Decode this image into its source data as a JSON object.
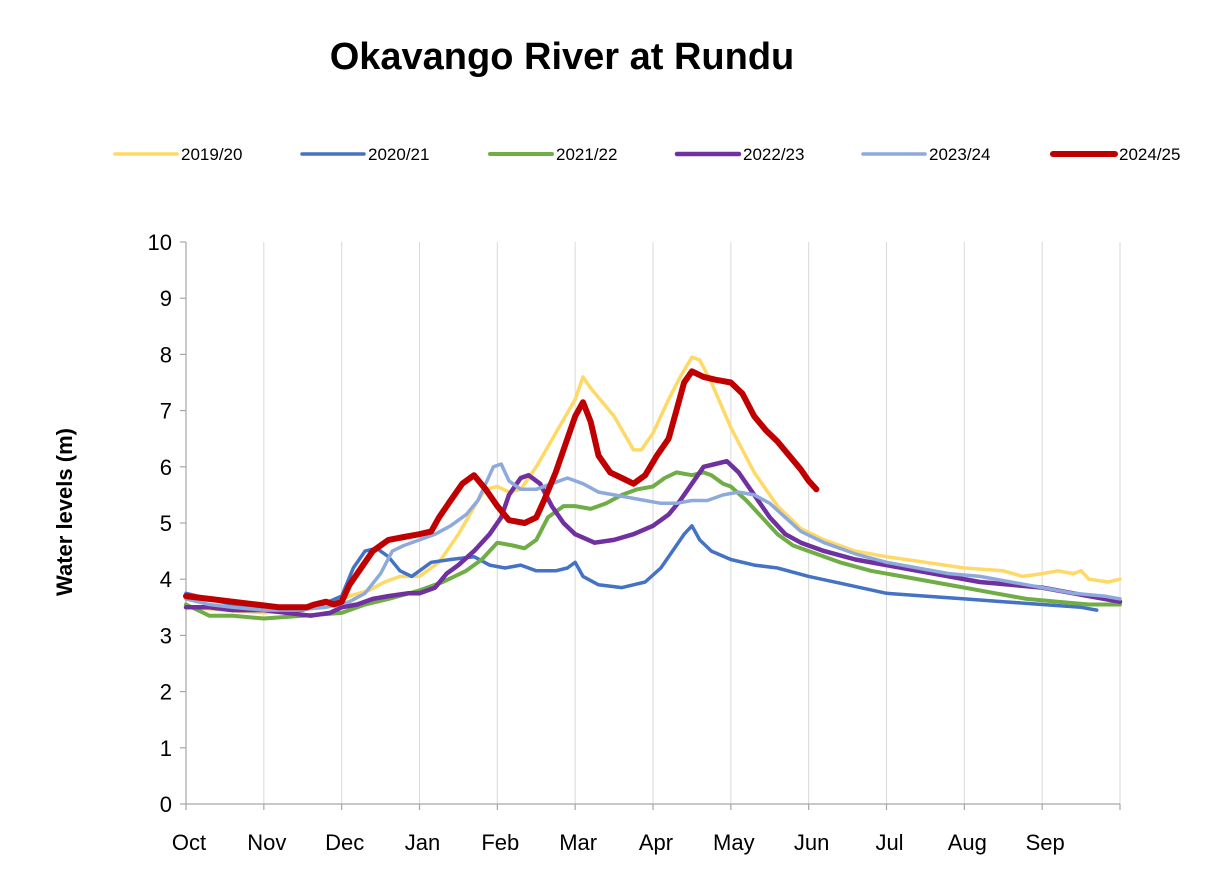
{
  "chart_data": {
    "type": "line",
    "title": "Okavango River at Rundu",
    "ylabel": "Water levels (m)",
    "xlabel": "",
    "ylim": [
      0,
      10
    ],
    "yticks": [
      "0",
      "1",
      "2",
      "3",
      "4",
      "5",
      "6",
      "7",
      "8",
      "9",
      "10"
    ],
    "months": [
      "Oct",
      "Nov",
      "Dec",
      "Jan",
      "Feb",
      "Mar",
      "Apr",
      "May",
      "Jun",
      "Jul",
      "Aug",
      "Sep"
    ],
    "x_unit": "months since 1 Oct",
    "grid": "vertical gridlines at month boundaries",
    "legend_position": "top",
    "series": [
      {
        "name": "2019/20",
        "color": "#FFD966",
        "width": 3.5,
        "points": [
          [
            0,
            3.5
          ],
          [
            0.5,
            3.45
          ],
          [
            1,
            3.4
          ],
          [
            1.5,
            3.45
          ],
          [
            1.85,
            3.55
          ],
          [
            2.1,
            3.7
          ],
          [
            2.35,
            3.8
          ],
          [
            2.55,
            3.95
          ],
          [
            2.75,
            4.05
          ],
          [
            3,
            4.05
          ],
          [
            3.25,
            4.3
          ],
          [
            3.5,
            4.8
          ],
          [
            3.75,
            5.4
          ],
          [
            3.85,
            5.6
          ],
          [
            4,
            5.65
          ],
          [
            4.15,
            5.55
          ],
          [
            4.3,
            5.6
          ],
          [
            4.5,
            6.0
          ],
          [
            4.75,
            6.6
          ],
          [
            5,
            7.2
          ],
          [
            5.1,
            7.6
          ],
          [
            5.2,
            7.4
          ],
          [
            5.5,
            6.9
          ],
          [
            5.75,
            6.3
          ],
          [
            5.85,
            6.3
          ],
          [
            6,
            6.6
          ],
          [
            6.2,
            7.2
          ],
          [
            6.35,
            7.6
          ],
          [
            6.5,
            7.95
          ],
          [
            6.6,
            7.9
          ],
          [
            6.75,
            7.5
          ],
          [
            7,
            6.7
          ],
          [
            7.3,
            5.9
          ],
          [
            7.6,
            5.3
          ],
          [
            7.9,
            4.9
          ],
          [
            8.2,
            4.7
          ],
          [
            8.6,
            4.5
          ],
          [
            9,
            4.4
          ],
          [
            9.5,
            4.3
          ],
          [
            10,
            4.2
          ],
          [
            10.5,
            4.15
          ],
          [
            10.75,
            4.05
          ],
          [
            11,
            4.1
          ],
          [
            11.2,
            4.15
          ],
          [
            11.4,
            4.1
          ],
          [
            11.5,
            4.15
          ],
          [
            11.6,
            4.0
          ],
          [
            11.85,
            3.95
          ],
          [
            12,
            4.0
          ]
        ]
      },
      {
        "name": "2020/21",
        "color": "#4472C4",
        "width": 3.5,
        "points": [
          [
            0,
            3.75
          ],
          [
            0.3,
            3.65
          ],
          [
            0.6,
            3.55
          ],
          [
            1,
            3.5
          ],
          [
            1.25,
            3.45
          ],
          [
            1.5,
            3.45
          ],
          [
            1.75,
            3.55
          ],
          [
            2,
            3.7
          ],
          [
            2.15,
            4.2
          ],
          [
            2.3,
            4.5
          ],
          [
            2.45,
            4.55
          ],
          [
            2.6,
            4.4
          ],
          [
            2.75,
            4.15
          ],
          [
            2.9,
            4.05
          ],
          [
            3,
            4.15
          ],
          [
            3.15,
            4.3
          ],
          [
            3.4,
            4.35
          ],
          [
            3.7,
            4.4
          ],
          [
            3.9,
            4.25
          ],
          [
            4.1,
            4.2
          ],
          [
            4.3,
            4.25
          ],
          [
            4.5,
            4.15
          ],
          [
            4.75,
            4.15
          ],
          [
            4.9,
            4.2
          ],
          [
            5,
            4.3
          ],
          [
            5.1,
            4.05
          ],
          [
            5.3,
            3.9
          ],
          [
            5.6,
            3.85
          ],
          [
            5.75,
            3.9
          ],
          [
            5.9,
            3.95
          ],
          [
            6.1,
            4.2
          ],
          [
            6.25,
            4.5
          ],
          [
            6.4,
            4.8
          ],
          [
            6.5,
            4.95
          ],
          [
            6.6,
            4.7
          ],
          [
            6.75,
            4.5
          ],
          [
            7,
            4.35
          ],
          [
            7.3,
            4.25
          ],
          [
            7.6,
            4.2
          ],
          [
            8,
            4.05
          ],
          [
            8.5,
            3.9
          ],
          [
            9,
            3.75
          ],
          [
            9.5,
            3.7
          ],
          [
            10,
            3.65
          ],
          [
            10.5,
            3.6
          ],
          [
            11,
            3.55
          ],
          [
            11.5,
            3.5
          ],
          [
            11.7,
            3.45
          ]
        ]
      },
      {
        "name": "2021/22",
        "color": "#70AD47",
        "width": 4,
        "points": [
          [
            0,
            3.55
          ],
          [
            0.3,
            3.35
          ],
          [
            0.6,
            3.35
          ],
          [
            1,
            3.3
          ],
          [
            1.5,
            3.35
          ],
          [
            2,
            3.4
          ],
          [
            2.3,
            3.55
          ],
          [
            2.6,
            3.65
          ],
          [
            3,
            3.8
          ],
          [
            3.3,
            3.95
          ],
          [
            3.6,
            4.15
          ],
          [
            3.8,
            4.35
          ],
          [
            4,
            4.65
          ],
          [
            4.2,
            4.6
          ],
          [
            4.35,
            4.55
          ],
          [
            4.5,
            4.7
          ],
          [
            4.65,
            5.1
          ],
          [
            4.85,
            5.3
          ],
          [
            5,
            5.3
          ],
          [
            5.2,
            5.25
          ],
          [
            5.4,
            5.35
          ],
          [
            5.6,
            5.5
          ],
          [
            5.8,
            5.6
          ],
          [
            6,
            5.65
          ],
          [
            6.15,
            5.8
          ],
          [
            6.3,
            5.9
          ],
          [
            6.5,
            5.85
          ],
          [
            6.65,
            5.9
          ],
          [
            6.75,
            5.85
          ],
          [
            6.9,
            5.7
          ],
          [
            7,
            5.65
          ],
          [
            7.2,
            5.4
          ],
          [
            7.4,
            5.1
          ],
          [
            7.6,
            4.8
          ],
          [
            7.8,
            4.6
          ],
          [
            8,
            4.5
          ],
          [
            8.4,
            4.3
          ],
          [
            8.8,
            4.15
          ],
          [
            9.2,
            4.05
          ],
          [
            9.6,
            3.95
          ],
          [
            10,
            3.85
          ],
          [
            10.4,
            3.75
          ],
          [
            10.8,
            3.65
          ],
          [
            11.2,
            3.6
          ],
          [
            11.6,
            3.55
          ],
          [
            12,
            3.55
          ]
        ]
      },
      {
        "name": "2022/23",
        "color": "#7030A0",
        "width": 4.5,
        "points": [
          [
            0,
            3.5
          ],
          [
            0.3,
            3.5
          ],
          [
            0.6,
            3.45
          ],
          [
            1,
            3.45
          ],
          [
            1.3,
            3.4
          ],
          [
            1.6,
            3.35
          ],
          [
            1.85,
            3.4
          ],
          [
            2,
            3.5
          ],
          [
            2.2,
            3.55
          ],
          [
            2.4,
            3.65
          ],
          [
            2.6,
            3.7
          ],
          [
            2.85,
            3.75
          ],
          [
            3,
            3.75
          ],
          [
            3.2,
            3.85
          ],
          [
            3.35,
            4.1
          ],
          [
            3.5,
            4.25
          ],
          [
            3.7,
            4.5
          ],
          [
            3.9,
            4.8
          ],
          [
            4.05,
            5.1
          ],
          [
            4.15,
            5.5
          ],
          [
            4.3,
            5.8
          ],
          [
            4.4,
            5.85
          ],
          [
            4.55,
            5.7
          ],
          [
            4.7,
            5.3
          ],
          [
            4.85,
            5.0
          ],
          [
            5,
            4.8
          ],
          [
            5.25,
            4.65
          ],
          [
            5.5,
            4.7
          ],
          [
            5.75,
            4.8
          ],
          [
            6,
            4.95
          ],
          [
            6.2,
            5.15
          ],
          [
            6.35,
            5.4
          ],
          [
            6.5,
            5.7
          ],
          [
            6.65,
            6.0
          ],
          [
            6.8,
            6.05
          ],
          [
            6.95,
            6.1
          ],
          [
            7.1,
            5.9
          ],
          [
            7.3,
            5.5
          ],
          [
            7.5,
            5.1
          ],
          [
            7.7,
            4.8
          ],
          [
            7.9,
            4.65
          ],
          [
            8.2,
            4.5
          ],
          [
            8.6,
            4.35
          ],
          [
            9,
            4.25
          ],
          [
            9.4,
            4.15
          ],
          [
            9.8,
            4.05
          ],
          [
            10.2,
            3.95
          ],
          [
            10.6,
            3.9
          ],
          [
            11,
            3.85
          ],
          [
            11.4,
            3.75
          ],
          [
            11.8,
            3.65
          ],
          [
            12,
            3.6
          ]
        ]
      },
      {
        "name": "2023/24",
        "color": "#8EA9DB",
        "width": 3.5,
        "points": [
          [
            0,
            3.65
          ],
          [
            0.3,
            3.55
          ],
          [
            0.6,
            3.5
          ],
          [
            1,
            3.45
          ],
          [
            1.4,
            3.45
          ],
          [
            1.8,
            3.5
          ],
          [
            2.1,
            3.6
          ],
          [
            2.3,
            3.75
          ],
          [
            2.5,
            4.1
          ],
          [
            2.65,
            4.5
          ],
          [
            2.8,
            4.6
          ],
          [
            3,
            4.7
          ],
          [
            3.2,
            4.8
          ],
          [
            3.4,
            4.95
          ],
          [
            3.6,
            5.15
          ],
          [
            3.75,
            5.4
          ],
          [
            3.85,
            5.7
          ],
          [
            3.95,
            6.0
          ],
          [
            4.05,
            6.05
          ],
          [
            4.15,
            5.75
          ],
          [
            4.3,
            5.6
          ],
          [
            4.5,
            5.6
          ],
          [
            4.7,
            5.7
          ],
          [
            4.9,
            5.8
          ],
          [
            5.1,
            5.7
          ],
          [
            5.3,
            5.55
          ],
          [
            5.5,
            5.5
          ],
          [
            5.7,
            5.45
          ],
          [
            5.9,
            5.4
          ],
          [
            6.1,
            5.35
          ],
          [
            6.3,
            5.35
          ],
          [
            6.5,
            5.4
          ],
          [
            6.7,
            5.4
          ],
          [
            6.9,
            5.5
          ],
          [
            7.1,
            5.55
          ],
          [
            7.3,
            5.5
          ],
          [
            7.5,
            5.35
          ],
          [
            7.7,
            5.1
          ],
          [
            7.9,
            4.85
          ],
          [
            8.2,
            4.65
          ],
          [
            8.6,
            4.45
          ],
          [
            9,
            4.3
          ],
          [
            9.4,
            4.2
          ],
          [
            9.8,
            4.1
          ],
          [
            10.2,
            4.05
          ],
          [
            10.6,
            3.95
          ],
          [
            11,
            3.85
          ],
          [
            11.4,
            3.75
          ],
          [
            11.8,
            3.7
          ],
          [
            12,
            3.65
          ]
        ]
      },
      {
        "name": "2024/25",
        "color": "#C00000",
        "width": 6,
        "points": [
          [
            0,
            3.7
          ],
          [
            0.3,
            3.65
          ],
          [
            0.6,
            3.6
          ],
          [
            0.9,
            3.55
          ],
          [
            1.2,
            3.5
          ],
          [
            1.4,
            3.5
          ],
          [
            1.55,
            3.5
          ],
          [
            1.65,
            3.55
          ],
          [
            1.8,
            3.6
          ],
          [
            1.9,
            3.55
          ],
          [
            2.0,
            3.6
          ],
          [
            2.1,
            3.9
          ],
          [
            2.25,
            4.2
          ],
          [
            2.4,
            4.5
          ],
          [
            2.6,
            4.7
          ],
          [
            2.8,
            4.75
          ],
          [
            3,
            4.8
          ],
          [
            3.15,
            4.85
          ],
          [
            3.25,
            5.1
          ],
          [
            3.4,
            5.4
          ],
          [
            3.55,
            5.7
          ],
          [
            3.7,
            5.85
          ],
          [
            3.85,
            5.6
          ],
          [
            4,
            5.3
          ],
          [
            4.15,
            5.05
          ],
          [
            4.35,
            5.0
          ],
          [
            4.5,
            5.1
          ],
          [
            4.6,
            5.4
          ],
          [
            4.75,
            5.9
          ],
          [
            4.9,
            6.5
          ],
          [
            5,
            6.9
          ],
          [
            5.1,
            7.15
          ],
          [
            5.2,
            6.8
          ],
          [
            5.3,
            6.2
          ],
          [
            5.45,
            5.9
          ],
          [
            5.6,
            5.8
          ],
          [
            5.75,
            5.7
          ],
          [
            5.9,
            5.85
          ],
          [
            6.05,
            6.2
          ],
          [
            6.2,
            6.5
          ],
          [
            6.3,
            7.0
          ],
          [
            6.4,
            7.5
          ],
          [
            6.5,
            7.7
          ],
          [
            6.65,
            7.6
          ],
          [
            6.8,
            7.55
          ],
          [
            7,
            7.5
          ],
          [
            7.15,
            7.3
          ],
          [
            7.3,
            6.9
          ],
          [
            7.45,
            6.65
          ],
          [
            7.6,
            6.45
          ],
          [
            7.75,
            6.2
          ],
          [
            7.9,
            5.95
          ],
          [
            8,
            5.75
          ],
          [
            8.1,
            5.6
          ]
        ]
      }
    ]
  }
}
